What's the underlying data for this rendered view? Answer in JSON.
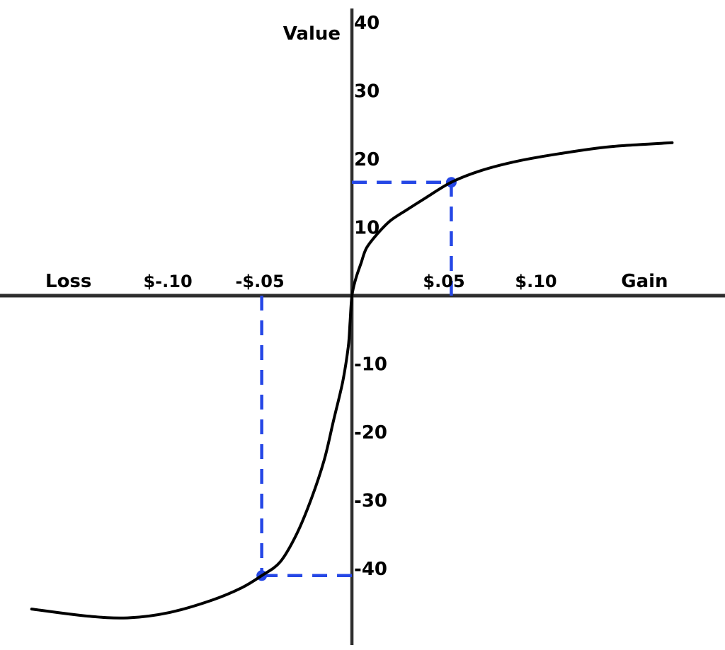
{
  "chart_data": {
    "type": "line",
    "y_axis_label": "Value",
    "x_end_labels": [
      {
        "x": -0.154,
        "label": "Loss"
      },
      {
        "x": 0.159,
        "label": "Gain"
      }
    ],
    "x_ticks": [
      {
        "x": -0.1,
        "label": "$-.10"
      },
      {
        "x": -0.05,
        "label": "-$.05"
      },
      {
        "x": 0.05,
        "label": "$.05"
      },
      {
        "x": 0.1,
        "label": "$.10"
      }
    ],
    "y_ticks": [
      {
        "v": 40,
        "label": "40"
      },
      {
        "v": 30,
        "label": "30"
      },
      {
        "v": 20,
        "label": "20"
      },
      {
        "v": 10,
        "label": "10"
      },
      {
        "v": -10,
        "label": "-10"
      },
      {
        "v": -20,
        "label": "-20"
      },
      {
        "v": -30,
        "label": "-30"
      },
      {
        "v": -40,
        "label": "-40"
      }
    ],
    "x_range": [
      -0.1912,
      0.2027
    ],
    "y_range": [
      -51.9,
      43.3
    ],
    "grid": false,
    "legend": false,
    "axis_color": "#2e2e2e",
    "curve": {
      "color": "#000000",
      "points": [
        [
          -0.174,
          -45.9
        ],
        [
          -0.145,
          -46.9
        ],
        [
          -0.122,
          -47.2
        ],
        [
          -0.099,
          -46.4
        ],
        [
          -0.076,
          -44.6
        ],
        [
          -0.06,
          -42.8
        ],
        [
          -0.049,
          -41.0
        ],
        [
          -0.039,
          -39.0
        ],
        [
          -0.03,
          -34.9
        ],
        [
          -0.022,
          -29.7
        ],
        [
          -0.015,
          -24.0
        ],
        [
          -0.01,
          -18.3
        ],
        [
          -0.005,
          -12.6
        ],
        [
          -0.002,
          -7.5
        ],
        [
          -0.001,
          -3.8
        ],
        [
          0.0,
          0.0
        ],
        [
          0.002,
          2.4
        ],
        [
          0.005,
          4.8
        ],
        [
          0.008,
          7.0
        ],
        [
          0.014,
          9.1
        ],
        [
          0.021,
          11.0
        ],
        [
          0.03,
          12.6
        ],
        [
          0.04,
          14.3
        ],
        [
          0.054,
          16.6
        ],
        [
          0.07,
          18.3
        ],
        [
          0.09,
          19.7
        ],
        [
          0.113,
          20.8
        ],
        [
          0.14,
          21.8
        ],
        [
          0.174,
          22.4
        ]
      ]
    },
    "highlight_points": [
      {
        "name": "gain-point",
        "x": 0.054,
        "value": 16.6
      },
      {
        "name": "loss-point",
        "x": -0.049,
        "value": -41.0
      }
    ],
    "guide_color": "#2547e6"
  }
}
